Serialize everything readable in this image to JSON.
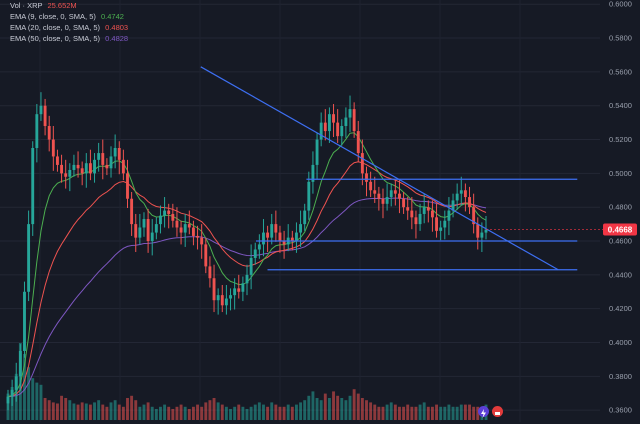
{
  "legend": {
    "vol": {
      "label": "Vol · XRP",
      "value": "25.652M",
      "color": "#ef5350"
    },
    "ema9": {
      "label": "EMA (9, close, 0, SMA, 5)",
      "value": "0.4742",
      "color": "#4caf50"
    },
    "ema20": {
      "label": "EMA (20, close, 0, SMA, 5)",
      "value": "0.4803",
      "color": "#ef5350"
    },
    "ema50": {
      "label": "EMA (50, close, 0, SMA, 5)",
      "value": "0.4828",
      "color": "#7e57c2"
    }
  },
  "price_badge": {
    "value": "0.4668",
    "color": "#f23645"
  },
  "colors": {
    "up": "#26a69a",
    "down": "#ef5350",
    "trendline": "#3d6ff2"
  },
  "icons": [
    "lightning-icon",
    "flag-icon"
  ],
  "chart_data": {
    "type": "candlestick",
    "y_axis_ticks": [
      "0.6000",
      "0.5800",
      "0.5600",
      "0.5400",
      "0.5200",
      "0.5000",
      "0.4800",
      "0.4600",
      "0.4400",
      "0.4200",
      "0.4000",
      "0.3800",
      "0.3600"
    ],
    "ylim": [
      0.353,
      0.6025
    ],
    "closes": [
      0.368,
      0.372,
      0.38,
      0.395,
      0.43,
      0.47,
      0.515,
      0.535,
      0.54,
      0.528,
      0.52,
      0.51,
      0.505,
      0.5,
      0.498,
      0.502,
      0.505,
      0.503,
      0.5,
      0.506,
      0.5,
      0.508,
      0.512,
      0.505,
      0.503,
      0.51,
      0.515,
      0.508,
      0.5,
      0.485,
      0.47,
      0.462,
      0.468,
      0.473,
      0.46,
      0.465,
      0.47,
      0.475,
      0.478,
      0.476,
      0.472,
      0.468,
      0.465,
      0.47,
      0.468,
      0.463,
      0.462,
      0.458,
      0.445,
      0.438,
      0.425,
      0.428,
      0.422,
      0.426,
      0.428,
      0.432,
      0.43,
      0.435,
      0.44,
      0.45,
      0.455,
      0.458,
      0.465,
      0.462,
      0.47,
      0.465,
      0.46,
      0.458,
      0.462,
      0.46,
      0.465,
      0.47,
      0.478,
      0.495,
      0.505,
      0.52,
      0.53,
      0.525,
      0.535,
      0.53,
      0.522,
      0.528,
      0.533,
      0.538,
      0.525,
      0.512,
      0.5,
      0.495,
      0.49,
      0.488,
      0.485,
      0.482,
      0.486,
      0.49,
      0.488,
      0.485,
      0.48,
      0.478,
      0.474,
      0.47,
      0.476,
      0.48,
      0.478,
      0.474,
      0.466,
      0.468,
      0.472,
      0.478,
      0.484,
      0.488,
      0.49,
      0.486,
      0.48,
      0.47,
      0.462,
      0.465,
      0.4668
    ],
    "volumes": [
      24,
      30,
      42,
      70,
      60,
      48,
      38,
      34,
      32,
      20,
      18,
      16,
      15,
      22,
      20,
      18,
      15,
      14,
      16,
      15,
      14,
      16,
      18,
      14,
      12,
      16,
      18,
      14,
      12,
      20,
      22,
      18,
      12,
      14,
      16,
      12,
      10,
      12,
      14,
      12,
      10,
      12,
      14,
      12,
      10,
      12,
      14,
      12,
      16,
      18,
      20,
      16,
      14,
      12,
      10,
      12,
      14,
      12,
      10,
      12,
      14,
      16,
      14,
      12,
      16,
      14,
      12,
      12,
      14,
      12,
      14,
      16,
      18,
      22,
      26,
      20,
      18,
      24,
      20,
      26,
      22,
      20,
      18,
      22,
      28,
      24,
      20,
      18,
      16,
      14,
      12,
      12,
      14,
      16,
      14,
      12,
      12,
      14,
      12,
      12,
      14,
      16,
      12,
      12,
      14,
      12,
      12,
      14,
      12,
      12,
      14,
      14,
      14,
      12,
      12,
      12,
      14
    ],
    "overlays": {
      "descending_trendline": [
        [
          0.3137,
          0.563
        ],
        [
          0.8722,
          0.443
        ]
      ],
      "horizontal_resistance": [
        [
          0.4788,
          0.4965
        ],
        [
          0.902,
          0.4965
        ]
      ],
      "horizontal_mid": [
        [
          0.4,
          0.46
        ],
        [
          0.902,
          0.46
        ]
      ],
      "horizontal_support": [
        [
          0.418,
          0.443
        ],
        [
          0.902,
          0.443
        ]
      ]
    }
  }
}
